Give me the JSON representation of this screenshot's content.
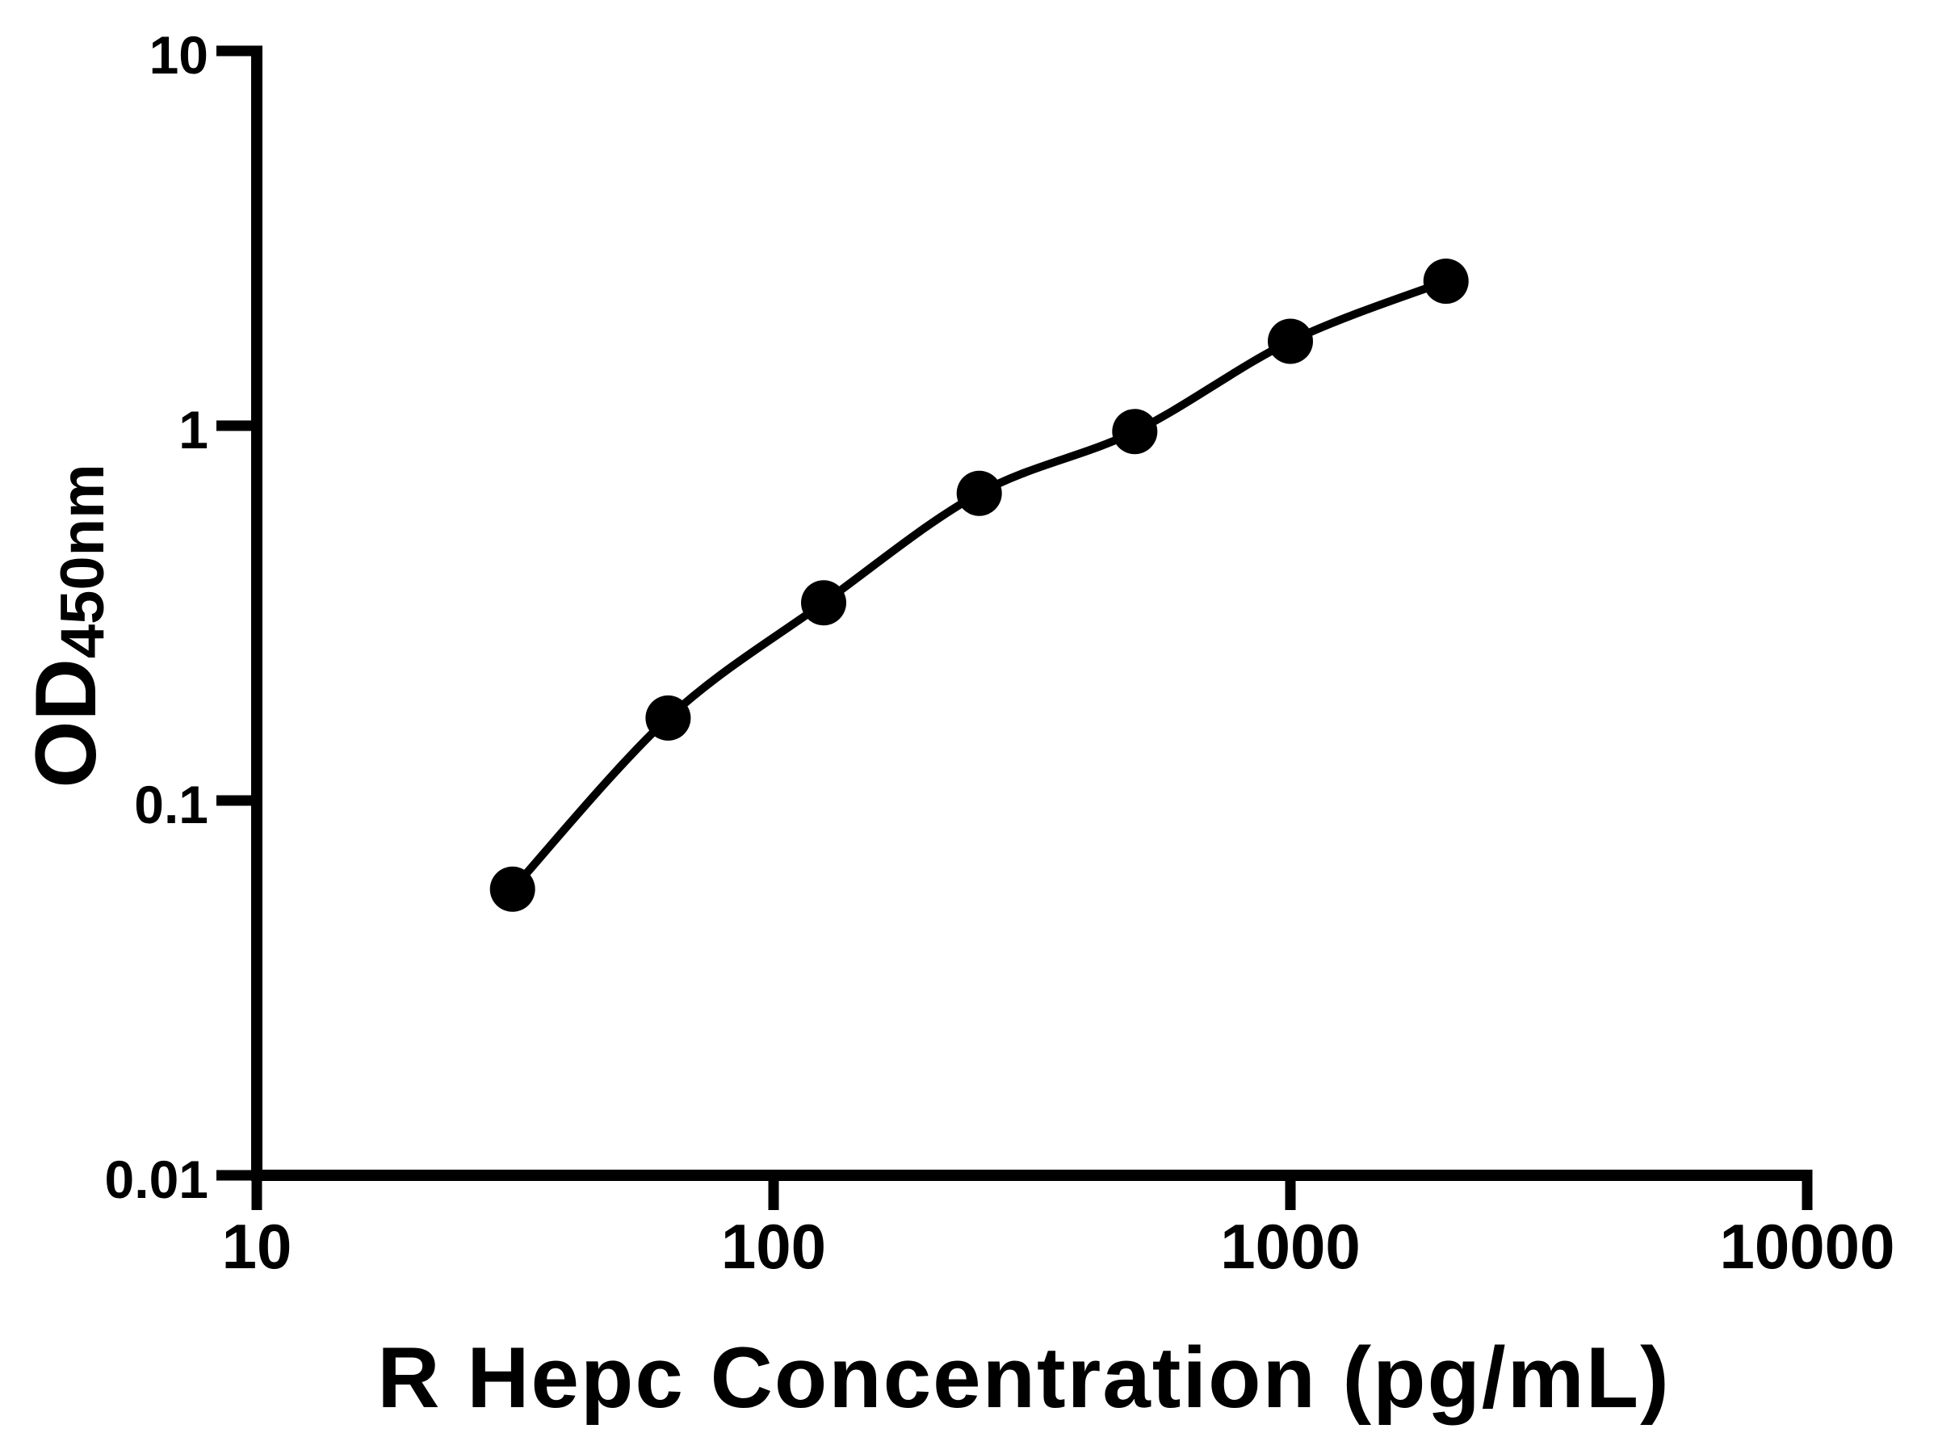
{
  "figure": {
    "background_color": "#ffffff",
    "ink_color": "#000000"
  },
  "chart_data": {
    "type": "scatter",
    "subtype": "standard-curve-with-smooth-fit-line",
    "title": "",
    "xlabel": "R Hepc Concentration (pg/mL)",
    "ylabel_main": "OD",
    "ylabel_sub": "450nm",
    "x_scale": "log10",
    "y_scale": "log10",
    "xlim": [
      10,
      10000
    ],
    "ylim": [
      0.01,
      10
    ],
    "x_ticks": [
      "10",
      "100",
      "1000",
      "10000"
    ],
    "y_ticks": [
      "0.01",
      "0.1",
      "1",
      "10"
    ],
    "grid": false,
    "legend": "none",
    "marker": "filled-circle",
    "marker_color": "#000000",
    "line_color": "#000000",
    "series": [
      {
        "name": "standard-curve",
        "points": [
          {
            "x": 31.25,
            "od": 0.058
          },
          {
            "x": 62.5,
            "od": 0.166
          },
          {
            "x": 125,
            "od": 0.337
          },
          {
            "x": 250,
            "od": 0.66
          },
          {
            "x": 500,
            "od": 0.965
          },
          {
            "x": 1000,
            "od": 1.68
          },
          {
            "x": 2000,
            "od": 2.43
          }
        ]
      }
    ]
  }
}
